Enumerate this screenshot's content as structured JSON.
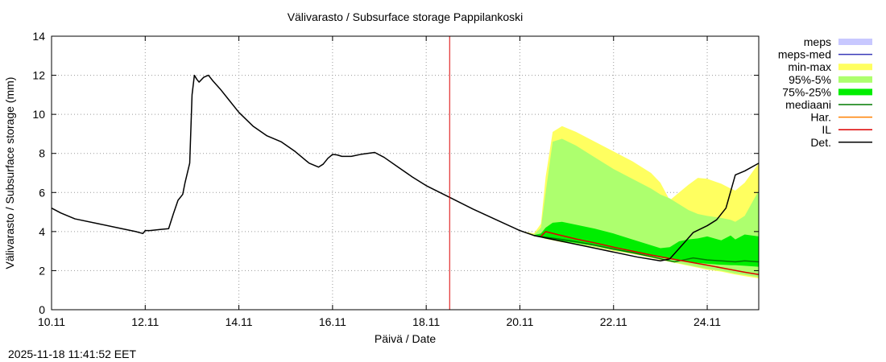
{
  "chart_data": {
    "type": "area",
    "title": "Välivarasto / Subsurface storage  Pappilankoski",
    "xlabel": "Päivä / Date",
    "ylabel": "Välivarasto / Subsurface storage (mm)",
    "ylim": [
      0,
      14
    ],
    "xlim": [
      0,
      15.1
    ],
    "x_unit": "days since 10.11",
    "grid": true,
    "xticks": [
      {
        "x": 0,
        "label": "10.11"
      },
      {
        "x": 2,
        "label": "12.11"
      },
      {
        "x": 4,
        "label": "14.11"
      },
      {
        "x": 6,
        "label": "16.11"
      },
      {
        "x": 8,
        "label": "18.11"
      },
      {
        "x": 10,
        "label": "20.11"
      },
      {
        "x": 12,
        "label": "22.11"
      },
      {
        "x": 14,
        "label": "24.11"
      }
    ],
    "yticks": [
      0,
      2,
      4,
      6,
      8,
      10,
      12,
      14
    ],
    "forecast_start_x": 8.5,
    "legend_position": "right, outside plot",
    "legend": [
      {
        "key": "meps",
        "label": "meps",
        "style": "box",
        "color": "#c8c8ff"
      },
      {
        "key": "meps_med",
        "label": "meps-med",
        "style": "line",
        "color": "#3a3ab8"
      },
      {
        "key": "min_max",
        "label": "min-max",
        "style": "box",
        "color": "#ffff60"
      },
      {
        "key": "p95_5",
        "label": "95%-5%",
        "style": "box",
        "color": "#adff6e"
      },
      {
        "key": "p75_25",
        "label": "75%-25%",
        "style": "box",
        "color": "#00ee00"
      },
      {
        "key": "median",
        "label": "mediaani",
        "style": "line",
        "color": "#007a00"
      },
      {
        "key": "har",
        "label": "Har.",
        "style": "line",
        "color": "#ff8000"
      },
      {
        "key": "il",
        "label": "IL",
        "style": "line",
        "color": "#dd0000"
      },
      {
        "key": "det",
        "label": "Det.",
        "style": "line",
        "color": "#000000"
      }
    ],
    "band_x": [
      10.05,
      10.3,
      10.45,
      10.55,
      10.7,
      10.9,
      11.2,
      11.6,
      12,
      12.4,
      12.8,
      13.0,
      13.2,
      13.4,
      13.6,
      13.8,
      14.0,
      14.3,
      14.5,
      14.6,
      14.8,
      15.1
    ],
    "series": [
      {
        "name": "min-max upper",
        "values": [
          4.02,
          3.9,
          4.4,
          6.8,
          9.1,
          9.4,
          9.1,
          8.6,
          8.1,
          7.6,
          7.0,
          6.5,
          5.6,
          6.0,
          6.4,
          6.75,
          6.7,
          6.45,
          6.2,
          6.1,
          6.5,
          7.5
        ]
      },
      {
        "name": "min-max lower",
        "values": [
          4.0,
          3.78,
          3.7,
          3.62,
          3.55,
          3.45,
          3.35,
          3.2,
          3.0,
          2.85,
          2.65,
          2.55,
          2.45,
          2.35,
          2.25,
          2.15,
          2.05,
          1.95,
          1.85,
          1.8,
          1.72,
          1.6
        ]
      },
      {
        "name": "95%-5% upper",
        "values": [
          4.02,
          3.85,
          4.2,
          6.0,
          8.6,
          8.75,
          8.4,
          7.8,
          7.2,
          6.7,
          6.2,
          5.9,
          5.7,
          5.4,
          5.1,
          4.9,
          4.8,
          4.7,
          4.6,
          4.5,
          4.8,
          6.1
        ]
      },
      {
        "name": "95%-5% lower",
        "values": [
          4.0,
          3.78,
          3.7,
          3.63,
          3.56,
          3.47,
          3.37,
          3.22,
          3.03,
          2.88,
          2.68,
          2.58,
          2.48,
          2.38,
          2.28,
          2.18,
          2.09,
          1.99,
          1.9,
          1.85,
          1.78,
          1.66
        ]
      },
      {
        "name": "75%-25% upper",
        "values": [
          4.0,
          3.82,
          3.9,
          4.2,
          4.45,
          4.5,
          4.35,
          4.15,
          3.9,
          3.6,
          3.3,
          3.15,
          3.2,
          3.5,
          3.6,
          3.65,
          3.75,
          3.55,
          3.8,
          3.6,
          3.85,
          3.75
        ]
      },
      {
        "name": "75%-25% lower",
        "values": [
          4.0,
          3.79,
          3.72,
          3.66,
          3.6,
          3.52,
          3.42,
          3.28,
          3.1,
          2.94,
          2.76,
          2.66,
          2.58,
          2.5,
          2.45,
          2.4,
          2.35,
          2.3,
          2.28,
          2.28,
          2.25,
          2.2
        ]
      },
      {
        "name": "mediaani",
        "x": [
          10.3,
          10.5,
          10.8,
          11.2,
          11.6,
          12.0,
          12.4,
          12.8,
          13.1,
          13.3,
          13.5,
          13.7,
          14.0,
          14.3,
          14.6,
          14.8,
          15.1
        ],
        "values": [
          3.8,
          3.72,
          3.63,
          3.48,
          3.3,
          3.1,
          2.92,
          2.72,
          2.55,
          2.45,
          2.55,
          2.65,
          2.55,
          2.5,
          2.45,
          2.5,
          2.45
        ]
      },
      {
        "name": "IL",
        "x": [
          10.45,
          10.55,
          10.8,
          11.2,
          11.6,
          12.0,
          12.4,
          12.8,
          13.2,
          13.6,
          14.0,
          14.4,
          14.8,
          15.1
        ],
        "values": [
          3.75,
          4.0,
          3.85,
          3.62,
          3.42,
          3.2,
          3.0,
          2.8,
          2.62,
          2.45,
          2.28,
          2.1,
          1.92,
          1.8
        ]
      },
      {
        "name": "Det.",
        "x": [
          0,
          0.2,
          0.5,
          1.0,
          1.5,
          1.8,
          1.95,
          2.0,
          2.1,
          2.3,
          2.5,
          2.6,
          2.7,
          2.8,
          2.85,
          2.95,
          3.0,
          3.05,
          3.1,
          3.15,
          3.25,
          3.35,
          3.45,
          3.6,
          3.8,
          4.0,
          4.3,
          4.6,
          4.9,
          5.2,
          5.5,
          5.7,
          5.8,
          5.9,
          6.0,
          6.1,
          6.2,
          6.4,
          6.6,
          6.9,
          7.1,
          7.4,
          7.7,
          8.0,
          8.5,
          9.0,
          9.5,
          10.0,
          10.3,
          10.6,
          11.0,
          11.5,
          12.0,
          12.5,
          13.0,
          13.2,
          13.5,
          13.7,
          14.0,
          14.2,
          14.4,
          14.6,
          14.8,
          15.1
        ],
        "values": [
          5.2,
          4.95,
          4.65,
          4.4,
          4.15,
          4.0,
          3.9,
          4.05,
          4.05,
          4.1,
          4.15,
          4.9,
          5.6,
          5.9,
          6.5,
          7.5,
          11.0,
          12.0,
          11.8,
          11.65,
          11.9,
          12.0,
          11.7,
          11.3,
          10.7,
          10.1,
          9.4,
          8.9,
          8.6,
          8.1,
          7.5,
          7.3,
          7.45,
          7.75,
          7.95,
          7.92,
          7.85,
          7.85,
          7.95,
          8.05,
          7.8,
          7.3,
          6.8,
          6.35,
          5.75,
          5.15,
          4.6,
          4.05,
          3.8,
          3.65,
          3.45,
          3.2,
          2.95,
          2.7,
          2.5,
          2.6,
          3.4,
          3.95,
          4.3,
          4.6,
          5.2,
          6.9,
          7.1,
          7.5
        ]
      }
    ]
  },
  "timestamp": "2025-11-18 11:41:52 EET"
}
